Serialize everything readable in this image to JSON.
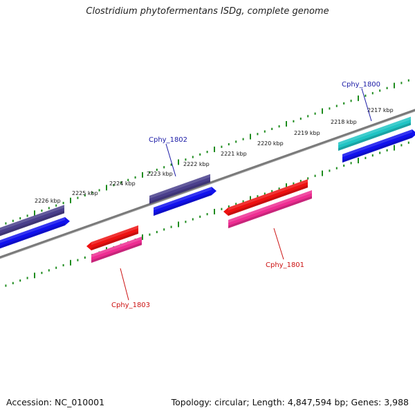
{
  "title": "Clostridium phytofermentans ISDg, complete genome",
  "footer": {
    "accession_label": "Accession: NC_010001",
    "summary": "Topology: circular; Length: 4,847,594 bp; Genes: 3,988"
  },
  "colors": {
    "background": "#ffffff",
    "backbone": "#7a7a7a",
    "ruler_ticks": "#1e8c1e",
    "forward_label": "#1a1aa6",
    "reverse_label": "#cc1111"
  },
  "ruler": {
    "unit": "kbp",
    "tick_labels": [
      "2217 kbp",
      "2218 kbp",
      "2219 kbp",
      "2220 kbp",
      "2221 kbp",
      "2222 kbp",
      "2223 kbp",
      "2224 kbp",
      "2225 kbp",
      "2226 kbp"
    ]
  },
  "genes": [
    {
      "name": "Cphy_1800",
      "strand": "forward",
      "color": "#20c4c4",
      "arrow_color": "#1111ee"
    },
    {
      "name": "Cphy_1801",
      "strand": "reverse",
      "color": "#ee1111",
      "arrow_color": "#ee2d92"
    },
    {
      "name": "Cphy_1802",
      "strand": "forward",
      "color": "#4a3f8c",
      "arrow_color": "#1111ee"
    },
    {
      "name": "Cphy_1803",
      "strand": "reverse",
      "color": "#ee1111",
      "arrow_color": "#ee2d92"
    },
    {
      "name": "",
      "strand": "forward",
      "color": "#4a3f8c",
      "arrow_color": "#1111ee"
    }
  ]
}
